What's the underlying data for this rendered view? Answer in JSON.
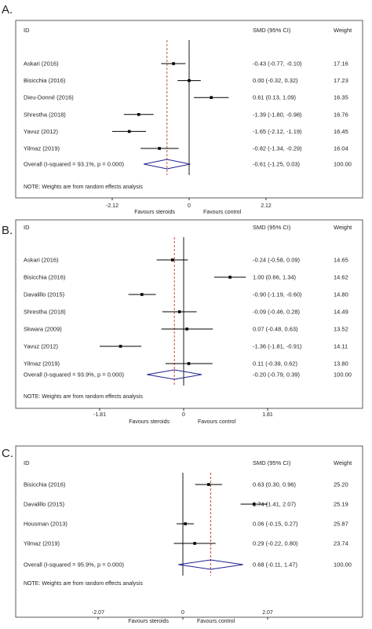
{
  "chart_data": [
    {
      "type": "forest",
      "panel_label": "A.",
      "columns": {
        "id": "ID",
        "effect": "SMD (95% CI)",
        "weight": "Weight"
      },
      "studies": [
        {
          "id": "Askari (2016)",
          "smd": -0.43,
          "lo": -0.77,
          "hi": -0.1,
          "ci_text": "-0.43 (-0.77, -0.10)",
          "weight": "17.16"
        },
        {
          "id": "Bisicchia (2016)",
          "smd": 0.0,
          "lo": -0.32,
          "hi": 0.32,
          "ci_text": "0.00 (-0.32, 0.32)",
          "weight": "17.23"
        },
        {
          "id": "Dieu-Donné (2016)",
          "smd": 0.61,
          "lo": 0.13,
          "hi": 1.09,
          "ci_text": "0.61 (0.13, 1.09)",
          "weight": "16.35"
        },
        {
          "id": "Shrestha (2018)",
          "smd": -1.39,
          "lo": -1.8,
          "hi": -0.98,
          "ci_text": "-1.39 (-1.80, -0.98)",
          "weight": "16.76"
        },
        {
          "id": "Yavuz (2012)",
          "smd": -1.65,
          "lo": -2.12,
          "hi": -1.19,
          "ci_text": "-1.65 (-2.12, -1.19)",
          "weight": "16.45"
        },
        {
          "id": "Yilmaz (2019)",
          "smd": -0.82,
          "lo": -1.34,
          "hi": -0.29,
          "ci_text": "-0.82 (-1.34, -0.29)",
          "weight": "16.04"
        }
      ],
      "overall": {
        "label": "Overall  (I-squared = 93.1%, p = 0.000)",
        "smd": -0.61,
        "lo": -1.25,
        "hi": 0.03,
        "ci_text": "-0.61 (-1.25, 0.03)",
        "weight": "100.00"
      },
      "note": "NOTE: Weights are from random effects analysis",
      "xlim": [
        -2.12,
        2.12
      ],
      "ticks": [
        {
          "value": -2.12,
          "label": "-2.12"
        },
        {
          "value": 0,
          "label": "0"
        },
        {
          "value": 2.12,
          "label": "2.12"
        }
      ],
      "favours_left": "Favours steroids",
      "favours_right": "Favours control"
    },
    {
      "type": "forest",
      "panel_label": "B.",
      "columns": {
        "id": "ID",
        "effect": "SMD (95% CI)",
        "weight": "Weight"
      },
      "studies": [
        {
          "id": "Askari (2016)",
          "smd": -0.24,
          "lo": -0.58,
          "hi": 0.09,
          "ci_text": "-0.24 (-0.58, 0.09)",
          "weight": "14.65"
        },
        {
          "id": "Bisicchia (2016)",
          "smd": 1.0,
          "lo": 0.66,
          "hi": 1.34,
          "ci_text": "1.00 (0.66, 1.34)",
          "weight": "14.62"
        },
        {
          "id": "Davalillo (2015)",
          "smd": -0.9,
          "lo": -1.19,
          "hi": -0.6,
          "ci_text": "-0.90 (-1.19, -0.60)",
          "weight": "14.80"
        },
        {
          "id": "Shrestha (2018)",
          "smd": -0.09,
          "lo": -0.46,
          "hi": 0.28,
          "ci_text": "-0.09 (-0.46, 0.28)",
          "weight": "14.49"
        },
        {
          "id": "Skwara (2009)",
          "smd": 0.07,
          "lo": -0.48,
          "hi": 0.63,
          "ci_text": "0.07 (-0.48, 0.63)",
          "weight": "13.52"
        },
        {
          "id": "Yavuz (2012)",
          "smd": -1.36,
          "lo": -1.81,
          "hi": -0.91,
          "ci_text": "-1.36 (-1.81, -0.91)",
          "weight": "14.11"
        },
        {
          "id": "Yilmaz (2019)",
          "smd": 0.11,
          "lo": -0.39,
          "hi": 0.62,
          "ci_text": "0.11 (-0.39, 0.62)",
          "weight": "13.80"
        }
      ],
      "overall": {
        "label": "Overall  (I-squared = 93.9%, p = 0.000)",
        "smd": -0.2,
        "lo": -0.79,
        "hi": 0.39,
        "ci_text": "-0.20 (-0.79, 0.39)",
        "weight": "100.00"
      },
      "note": "NOTE: Weights are from random effects analysis",
      "xlim": [
        -1.81,
        1.81
      ],
      "ticks": [
        {
          "value": -1.81,
          "label": "-1.81"
        },
        {
          "value": 0,
          "label": "0"
        },
        {
          "value": 1.81,
          "label": "1.81"
        }
      ],
      "favours_left": "Favours steroids",
      "favours_right": "Favours control"
    },
    {
      "type": "forest",
      "panel_label": "C.",
      "columns": {
        "id": "ID",
        "effect": "SMD (95% CI)",
        "weight": "Weight"
      },
      "studies": [
        {
          "id": "Bisicchia (2016)",
          "smd": 0.63,
          "lo": 0.3,
          "hi": 0.96,
          "ci_text": "0.63 (0.30, 0.96)",
          "weight": "25.20"
        },
        {
          "id": "Davalillo (2015)",
          "smd": 1.74,
          "lo": 1.41,
          "hi": 2.07,
          "ci_text": "1.74 (1.41, 2.07)",
          "weight": "25.19"
        },
        {
          "id": "Housman (2013)",
          "smd": 0.06,
          "lo": -0.15,
          "hi": 0.27,
          "ci_text": "0.06 (-0.15, 0.27)",
          "weight": "25.87"
        },
        {
          "id": "Yilmaz (2019)",
          "smd": 0.29,
          "lo": -0.22,
          "hi": 0.8,
          "ci_text": "0.29 (-0.22, 0.80)",
          "weight": "23.74"
        }
      ],
      "overall": {
        "label": "Overall  (I-squared = 95.9%, p = 0.000)",
        "smd": 0.68,
        "lo": -0.11,
        "hi": 1.47,
        "ci_text": "0.68 (-0.11, 1.47)",
        "weight": "100.00"
      },
      "note": "NOTE: Weights are from random effects analysis",
      "xlim": [
        -2.07,
        2.07
      ],
      "ticks": [
        {
          "value": -2.07,
          "label": "-2.07"
        },
        {
          "value": 0,
          "label": "0"
        },
        {
          "value": 2.07,
          "label": "2.07"
        }
      ],
      "favours_left": "Favours steroids",
      "favours_right": "Favours control"
    }
  ],
  "colors": {
    "box": "#000000",
    "diamond": "#1f1f8f",
    "overall_line": "#c0392b",
    "frame": "#333333",
    "text": "#222222"
  }
}
